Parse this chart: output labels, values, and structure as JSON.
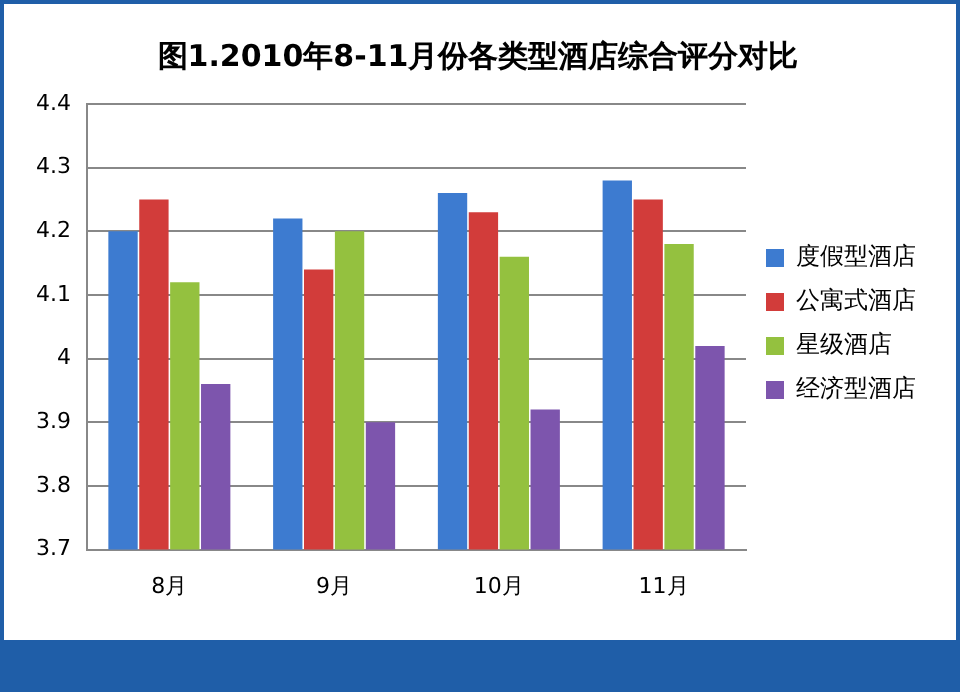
{
  "chart_data": {
    "type": "bar",
    "title": "图1.2010年8-11月份各类型酒店综合评分对比",
    "categories": [
      "8月",
      "9月",
      "10月",
      "11月"
    ],
    "series": [
      {
        "name": "度假型酒店",
        "color": "#3d7bd0",
        "values": [
          4.2,
          4.22,
          4.26,
          4.28
        ]
      },
      {
        "name": "公寓式酒店",
        "color": "#d23c3a",
        "values": [
          4.25,
          4.14,
          4.23,
          4.25
        ]
      },
      {
        "name": "星级酒店",
        "color": "#94c13f",
        "values": [
          4.12,
          4.2,
          4.16,
          4.18
        ]
      },
      {
        "name": "经济型酒店",
        "color": "#7d55ad",
        "values": [
          3.96,
          3.9,
          3.92,
          4.02
        ]
      }
    ],
    "ylim": [
      3.7,
      4.4
    ],
    "yticks": [
      3.7,
      3.8,
      3.9,
      4,
      4.1,
      4.2,
      4.3,
      4.4
    ],
    "grid": "y",
    "legend": "right"
  }
}
